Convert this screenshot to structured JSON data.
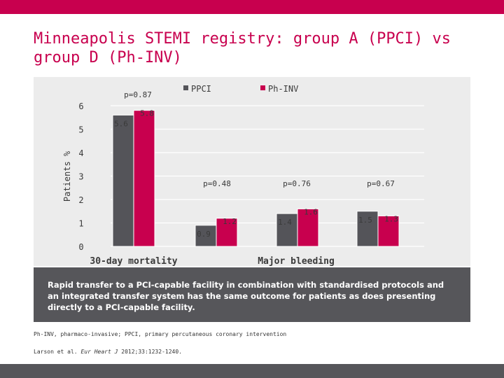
{
  "slide": {
    "title": "Minneapolis STEMI registry: group A (PPCI) vs group D (Ph-INV)",
    "takeaway": "Rapid transfer to a PCI-capable facility in combination with standardised protocols and an integrated transfer system has the same outcome for patients as does presenting directly to a PCI-capable facility.",
    "footnote": "Ph-INV, pharmaco-invasive; PPCI, primary percutaneous coronary intervention",
    "reference": {
      "authors": "Larson et al.",
      "journal": "Eur Heart J",
      "details": "2012;33:1232-1240."
    }
  },
  "colors": {
    "accent": "#c8004e",
    "dark_gray": "#545459",
    "panel": "#ececec",
    "banner": "#56565a"
  },
  "chart_data": {
    "type": "bar",
    "ylabel": "Patients %",
    "ylim": [
      0,
      6
    ],
    "yticks": [
      0,
      1,
      2,
      3,
      4,
      5,
      6
    ],
    "grid": true,
    "legend_position": "top",
    "series": [
      {
        "name": "PPCI",
        "color": "#545459"
      },
      {
        "name": "Ph-INV",
        "color": "#c8004e"
      }
    ],
    "groups": [
      {
        "label": "30-day mortality",
        "pvalue": "p=0.87",
        "values": [
          5.6,
          5.8
        ],
        "value_labels": [
          "5.6",
          "5.8"
        ]
      },
      {
        "label": "",
        "pvalue": "p=0.48",
        "values": [
          0.9,
          1.2
        ],
        "value_labels": [
          "0.9",
          "1.2"
        ]
      },
      {
        "label": "Major bleeding",
        "pvalue": "p=0.76",
        "values": [
          1.4,
          1.6
        ],
        "value_labels": [
          "1.4",
          "1.6"
        ]
      },
      {
        "label": "",
        "pvalue": "p=0.67",
        "values": [
          1.5,
          1.3
        ],
        "value_labels": [
          "1.5",
          "1.3"
        ]
      }
    ]
  }
}
